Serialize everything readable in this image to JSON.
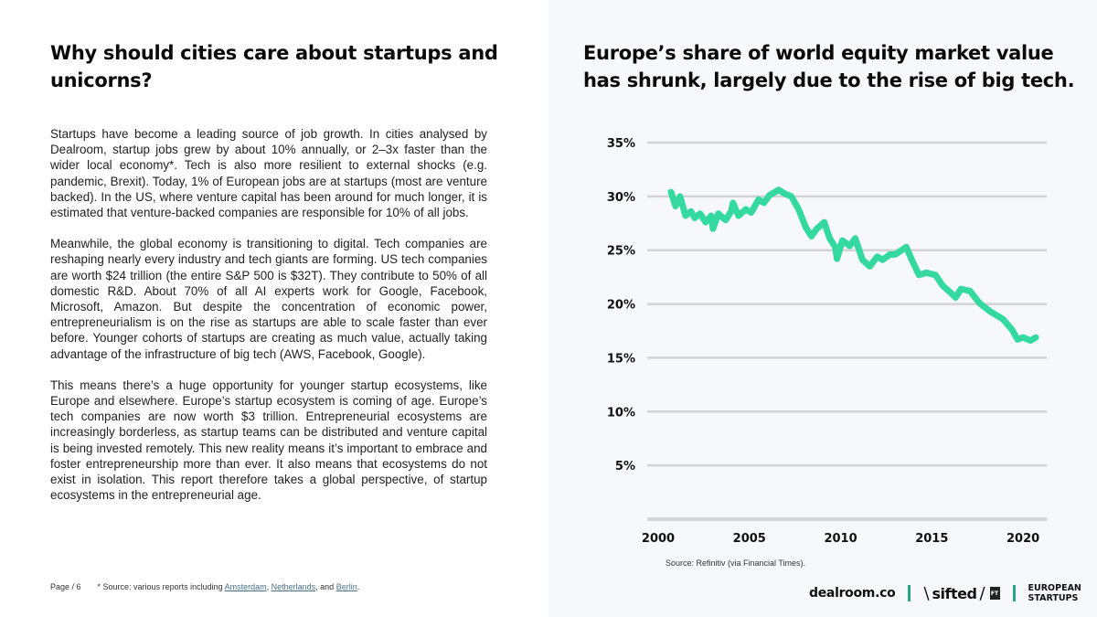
{
  "left": {
    "title": "Why should cities care about startups and unicorns?",
    "paragraphs": [
      "Startups have become a leading source of job growth. In cities analysed by Dealroom, startup jobs grew by about 10% annually, or 2–3x faster than the wider local economy*. Tech is also more resilient to external shocks (e.g. pandemic, Brexit). Today, 1% of European jobs are at startups (most are venture backed). In the US, where venture capital has been around for much longer, it is estimated that venture-backed companies are responsible for 10% of all jobs.",
      "Meanwhile, the global economy is transitioning to digital. Tech companies are reshaping nearly every industry and tech giants are forming. US tech companies are worth $24 trillion (the entire S&P 500 is $32T). They contribute to 50% of all domestic R&D. About 70% of all AI experts work for Google, Facebook, Microsoft, Amazon. But despite the concentration of economic power, entrepreneurialism is on the rise as startups are able to scale faster than ever before. Younger cohorts of startups are creating as much value, actually taking advantage of the infrastructure of big tech (AWS, Facebook, Google).",
      "This means there’s a huge opportunity for younger startup ecosystems, like Europe and elsewhere. Europe’s startup ecosystem is coming of age. Europe’s tech companies are now worth $3 trillion. Entrepreneurial ecosystems are increasingly borderless, as startup teams can be distributed and venture capital is being invested remotely. This new reality means it’s important to embrace and foster entrepreneurship more than ever. It also means that ecosystems do not exist in isolation. This report therefore takes a global perspective, of startup ecosystems in the entrepreneurial age."
    ],
    "footer": {
      "page": "Page / 6",
      "source_prefix": "* Source: various reports including ",
      "links": [
        "Amsterdam",
        "Netherlands",
        "Berlin"
      ],
      "sep1": ", ",
      "sep2": ", and ",
      "end": "."
    }
  },
  "right": {
    "title": "Europe’s share of world equity market value has shrunk, largely due to the rise of big tech.",
    "source": "Source: Refinitiv (via Financial Times).",
    "logos": {
      "dealroom": "dealroom.co",
      "sifted_slash": "\\",
      "sifted": "sifted",
      "sifted_slash2": "/",
      "ft": "FT",
      "european_line1": "EUROPEAN",
      "european_line2": "STARTUPS"
    },
    "accent_color": "#27a38a"
  },
  "chart_data": {
    "type": "line",
    "title": "Europe’s share of world equity market value has shrunk, largely due to the rise of big tech.",
    "xlabel": "",
    "ylabel": "",
    "xlim": [
      2000,
      2021
    ],
    "ylim": [
      0,
      35
    ],
    "x_ticks": [
      2000,
      2005,
      2010,
      2015,
      2020
    ],
    "x_tick_labels": [
      "2000",
      "2005",
      "2010",
      "2015",
      "2020"
    ],
    "y_ticks": [
      5,
      10,
      15,
      20,
      25,
      30,
      35
    ],
    "y_tick_labels": [
      "5%",
      "10%",
      "15%",
      "20%",
      "25%",
      "30%",
      "35%"
    ],
    "grid": true,
    "legend": "none",
    "line_color": "#34d9a0",
    "series": [
      {
        "name": "Europe share of world equity market value (%)",
        "x": [
          2000.7,
          2000.95,
          2001.2,
          2001.5,
          2001.8,
          2002.0,
          2002.3,
          2002.6,
          2002.9,
          2003.0,
          2003.3,
          2003.7,
          2004.0,
          2004.1,
          2004.4,
          2004.8,
          2005.1,
          2005.5,
          2005.8,
          2006.1,
          2006.6,
          2007.0,
          2007.3,
          2007.7,
          2008.1,
          2008.4,
          2008.7,
          2009.1,
          2009.4,
          2009.7,
          2009.8,
          2010.1,
          2010.5,
          2010.8,
          2011.2,
          2011.6,
          2012.0,
          2012.3,
          2012.7,
          2013.0,
          2013.6,
          2013.9,
          2014.3,
          2014.7,
          2015.2,
          2015.6,
          2016.0,
          2016.3,
          2016.6,
          2017.1,
          2017.6,
          2018.2,
          2018.9,
          2019.4,
          2019.7,
          2020.0,
          2020.4,
          2020.7
        ],
        "y": [
          30.4,
          29.1,
          30.0,
          28.2,
          28.6,
          28.0,
          28.4,
          27.6,
          28.2,
          27.0,
          28.4,
          27.8,
          28.6,
          29.4,
          28.2,
          28.8,
          28.5,
          29.7,
          29.4,
          30.1,
          30.6,
          30.2,
          30.0,
          28.8,
          27.1,
          26.3,
          27.0,
          27.6,
          26.1,
          25.3,
          24.2,
          25.9,
          25.4,
          26.1,
          24.1,
          23.5,
          24.4,
          24.1,
          24.6,
          24.6,
          25.3,
          24.1,
          22.7,
          22.9,
          22.7,
          21.7,
          21.1,
          20.6,
          21.4,
          21.2,
          20.1,
          19.3,
          18.6,
          17.6,
          16.7,
          16.9,
          16.6,
          16.9
        ]
      }
    ]
  }
}
